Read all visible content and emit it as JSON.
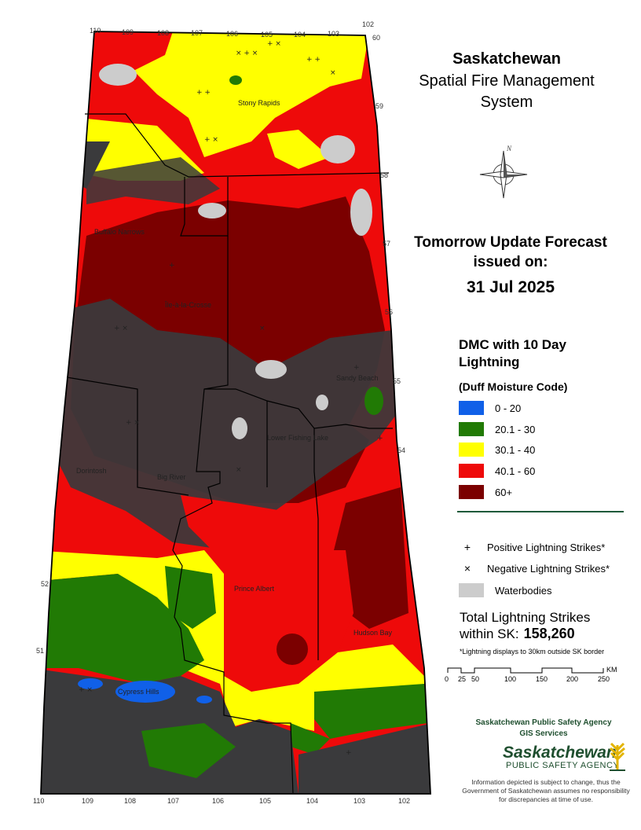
{
  "title": {
    "province": "Saskatchewan",
    "system": "Spatial Fire Management System"
  },
  "forecast": {
    "heading": "Tomorrow Update Forecast issued on:",
    "date": "31 Jul 2025"
  },
  "legend": {
    "title": "DMC with 10 Day Lightning",
    "subtitle": "(Duff Moisture Code)",
    "classes": [
      {
        "label": "0 - 20",
        "color": "#1060e8"
      },
      {
        "label": "20.1 - 30",
        "color": "#217a05"
      },
      {
        "label": "30.1 - 40",
        "color": "#ffff00"
      },
      {
        "label": "40.1 - 60",
        "color": "#ee0a0a"
      },
      {
        "label": "60+",
        "color": "#7b0000"
      }
    ],
    "positive_label": "Positive Lightning Strikes*",
    "negative_label": "Negative Lightning Strikes*",
    "water_label": "Waterbodies",
    "positive_symbol": "+",
    "negative_symbol": "×"
  },
  "totals": {
    "label": "Total Lightning Strikes within SK:",
    "value": "158,260",
    "note": "*Lightning displays to 30km outside SK border"
  },
  "scale": {
    "ticks": [
      "0",
      "25",
      "50",
      "100",
      "150",
      "200",
      "250"
    ],
    "unit": "KM"
  },
  "agency": {
    "name": "Saskatchewan Public Safety Agency",
    "dept": "GIS  Services",
    "logo_main": "Saskatchewan",
    "logo_sub": "PUBLIC SAFETY AGENCY",
    "disclaimer": "Information depicted is subject to change, thus the Government of Saskatchewan assumes no responsibility for discrepancies at time of use."
  },
  "map": {
    "places": [
      "Stony Rapids",
      "Buffalo Narrows",
      "Île-à-la-Crosse",
      "Sandy Beach",
      "Lower Fishing Lake",
      "Dorintosh",
      "Big River",
      "Prince Albert",
      "Hudson Bay",
      "Cypress Hills"
    ],
    "lon_top": [
      "110",
      "109",
      "108",
      "107",
      "106",
      "105",
      "104",
      "103",
      "102"
    ],
    "lon_bottom": [
      "110",
      "109",
      "108",
      "107",
      "106",
      "105",
      "104",
      "103",
      "102"
    ],
    "lat": [
      "60",
      "59",
      "58",
      "57",
      "56",
      "55",
      "54",
      "52",
      "51"
    ],
    "compass_n": "N"
  }
}
